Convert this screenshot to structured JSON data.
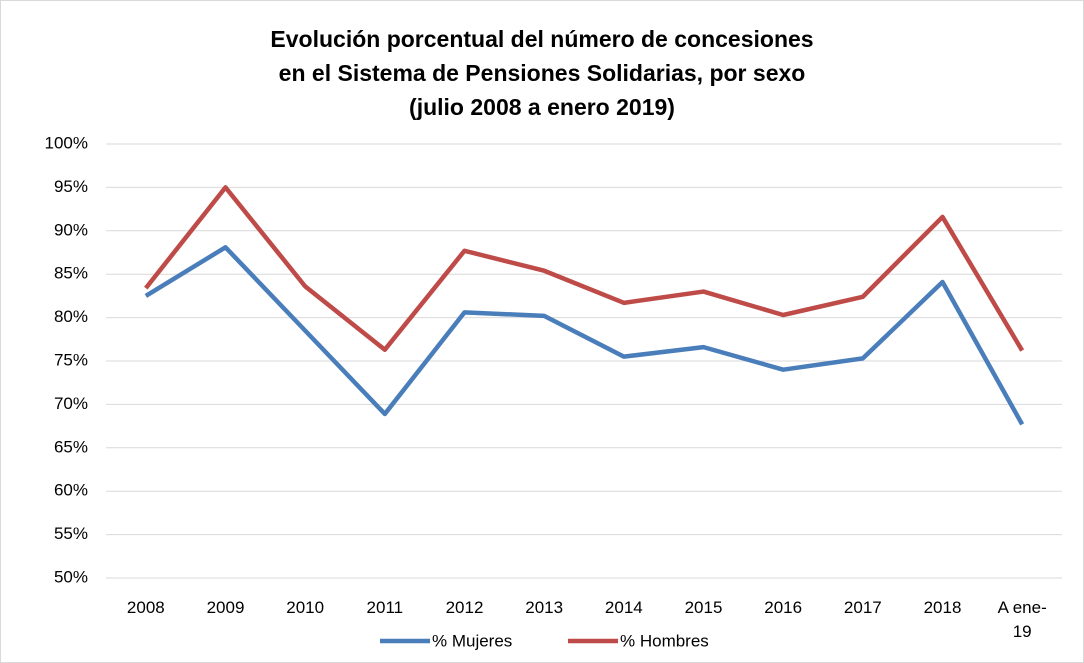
{
  "chart_data": {
    "type": "line",
    "title": "Evolución porcentual del número de concesiones\nen el Sistema de Pensiones Solidarias, por sexo\n(julio 2008 a enero 2019)",
    "categories": [
      "2008",
      "2009",
      "2010",
      "2011",
      "2012",
      "2013",
      "2014",
      "2015",
      "2016",
      "2017",
      "2018",
      "A ene-19"
    ],
    "series": [
      {
        "name": "% Mujeres",
        "color": "#4a7ebb",
        "values": [
          82.5,
          88.1,
          78.5,
          68.9,
          80.6,
          80.2,
          75.5,
          76.6,
          74.0,
          75.3,
          84.1,
          67.7
        ]
      },
      {
        "name": "% Hombres",
        "color": "#be4b48",
        "values": [
          83.4,
          95.0,
          83.6,
          76.3,
          87.7,
          85.4,
          81.7,
          83.0,
          80.3,
          82.4,
          91.6,
          76.2
        ]
      }
    ],
    "ylim": [
      50,
      100
    ],
    "yticks": [
      {
        "value": 50,
        "label": "50%"
      },
      {
        "value": 55,
        "label": "55%"
      },
      {
        "value": 60,
        "label": "60%"
      },
      {
        "value": 65,
        "label": "65%"
      },
      {
        "value": 70,
        "label": "70%"
      },
      {
        "value": 75,
        "label": "75%"
      },
      {
        "value": 80,
        "label": "80%"
      },
      {
        "value": 85,
        "label": "85%"
      },
      {
        "value": 90,
        "label": "90%"
      },
      {
        "value": 95,
        "label": "95%"
      },
      {
        "value": 100,
        "label": "100%"
      }
    ],
    "grid": true,
    "legend": "bottom"
  }
}
